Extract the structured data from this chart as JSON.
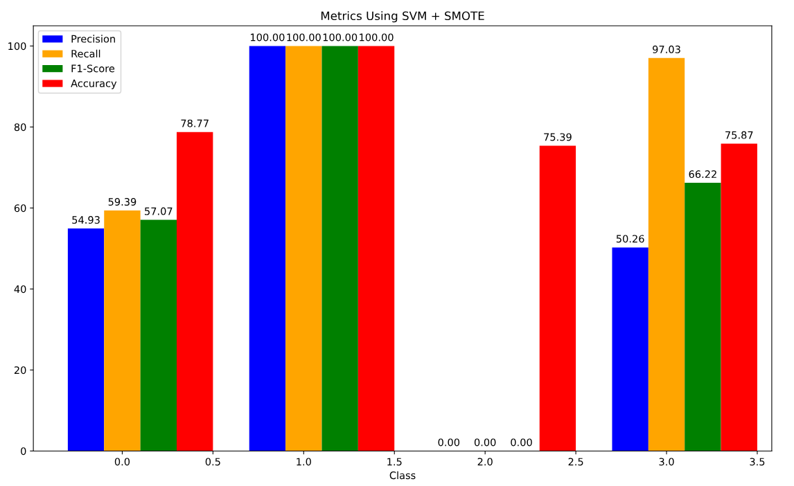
{
  "chart_data": {
    "type": "bar",
    "title": "Metrics Using SVM + SMOTE",
    "xlabel": "Class",
    "series": [
      {
        "name": "Precision",
        "color": "#0000ff",
        "x": [
          -0.2,
          0.8,
          1.8,
          2.8
        ],
        "values": [
          54.93,
          100,
          0,
          50.26
        ],
        "value_labels": [
          "54.93",
          "100.00",
          "0.00",
          "50.26"
        ]
      },
      {
        "name": "Recall",
        "color": "#ffa500",
        "x": [
          0.0,
          1.0,
          2.0,
          3.0
        ],
        "values": [
          59.39,
          100,
          0,
          97.03
        ],
        "value_labels": [
          "59.39",
          "100.00",
          "0.00",
          "97.03"
        ]
      },
      {
        "name": "F1-Score",
        "color": "#008000",
        "x": [
          0.2,
          1.2,
          2.2,
          3.2
        ],
        "values": [
          57.07,
          100,
          0,
          66.22
        ],
        "value_labels": [
          "57.07",
          "100.00",
          "0.00",
          "66.22"
        ]
      },
      {
        "name": "Accuracy",
        "color": "#ff0000",
        "x": [
          0.4,
          1.4,
          2.4,
          3.4
        ],
        "values": [
          78.77,
          100,
          75.39,
          75.87
        ],
        "value_labels": [
          "78.77",
          "100.00",
          "75.39",
          "75.87"
        ]
      }
    ],
    "xlim": [
      -0.49,
      3.58
    ],
    "xticks": [
      {
        "value": 0,
        "label": "0.0"
      },
      {
        "value": 0.5,
        "label": "0.5"
      },
      {
        "value": 1,
        "label": "1.0"
      },
      {
        "value": 1.5,
        "label": "1.5"
      },
      {
        "value": 2,
        "label": "2.0"
      },
      {
        "value": 2.5,
        "label": "2.5"
      },
      {
        "value": 3,
        "label": "3.0"
      },
      {
        "value": 3.5,
        "label": "3.5"
      }
    ],
    "ylim": [
      0,
      105
    ],
    "yticks": [
      0,
      20,
      40,
      60,
      80,
      100
    ],
    "grid": false,
    "legend": "top left"
  }
}
